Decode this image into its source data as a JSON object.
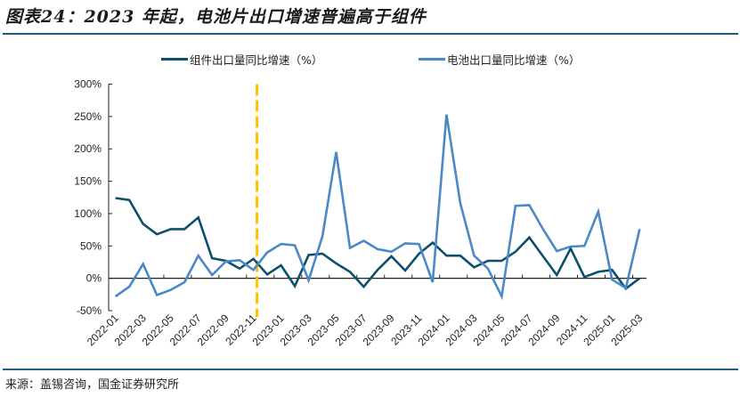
{
  "header": {
    "title": "图表24：2023 年起，电池片出口增速普遍高于组件"
  },
  "footer": {
    "source": "来源：盖锡咨询，国金证券研究所"
  },
  "colors": {
    "module": "#0e4f6e",
    "cell": "#4a88c7",
    "marker": "#ffc000",
    "rule": "#1f5c7f"
  },
  "chart_data": {
    "type": "line",
    "title": "图表24：2023 年起，电池片出口增速普遍高于组件",
    "xlabel": "",
    "ylabel": "",
    "ylim": [
      -50,
      300
    ],
    "yticks": [
      "300%",
      "250%",
      "200%",
      "150%",
      "100%",
      "50%",
      "0%",
      "-50%"
    ],
    "ytick_values": [
      300,
      250,
      200,
      150,
      100,
      50,
      0,
      -50
    ],
    "grid": false,
    "legend_position": "top",
    "x": [
      "2022-01",
      "2022-02",
      "2022-03",
      "2022-04",
      "2022-05",
      "2022-06",
      "2022-07",
      "2022-08",
      "2022-09",
      "2022-10",
      "2022-11",
      "2022-12",
      "2023-01",
      "2023-02",
      "2023-03",
      "2023-04",
      "2023-05",
      "2023-06",
      "2023-07",
      "2023-08",
      "2023-09",
      "2023-10",
      "2023-11",
      "2023-12",
      "2024-01",
      "2024-02",
      "2024-03",
      "2024-04",
      "2024-05",
      "2024-06",
      "2024-07",
      "2024-08",
      "2024-09",
      "2024-10",
      "2024-11",
      "2024-12",
      "2025-01",
      "2025-02",
      "2025-03"
    ],
    "xtick_labels": [
      "2022-01",
      "2022-03",
      "2022-05",
      "2022-07",
      "2022-09",
      "2022-11",
      "2023-01",
      "2023-03",
      "2023-05",
      "2023-07",
      "2023-09",
      "2023-11",
      "2024-01",
      "2024-03",
      "2024-05",
      "2024-07",
      "2024-09",
      "2024-11",
      "2025-01",
      "2025-03"
    ],
    "series": [
      {
        "name": "组件出口量同比增速（%）",
        "values": [
          124,
          121,
          84,
          68,
          76,
          76,
          94,
          31,
          27,
          15,
          30,
          6,
          20,
          -12,
          36,
          38,
          23,
          10,
          -13,
          13,
          34,
          12,
          38,
          55,
          35,
          35,
          17,
          27,
          27,
          41,
          63,
          34,
          5,
          46,
          2,
          10,
          13,
          -16,
          0
        ]
      },
      {
        "name": "电池出口量同比增速（%）",
        "values": [
          -28,
          -13,
          22,
          -26,
          -18,
          -6,
          35,
          5,
          26,
          28,
          13,
          40,
          53,
          51,
          -3,
          65,
          195,
          47,
          58,
          45,
          41,
          54,
          53,
          -6,
          253,
          116,
          35,
          15,
          -28,
          112,
          113,
          76,
          42,
          49,
          50,
          103,
          -2,
          -15,
          76
        ]
      }
    ],
    "annotations": [
      {
        "type": "vertical-dashed-line",
        "at": "2022-11",
        "color": "#ffc000"
      }
    ]
  }
}
